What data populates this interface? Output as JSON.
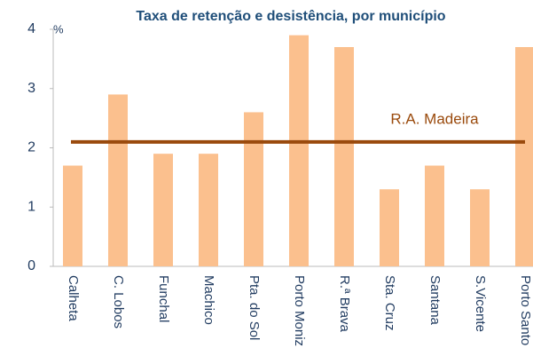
{
  "chart_data": {
    "type": "bar",
    "title": "Taxa de retenção e desistência, por município",
    "y_unit": "%",
    "categories": [
      "Calheta",
      "C. Lobos",
      "Funchal",
      "Machico",
      "Pta. do Sol",
      "Porto Moniz",
      "R.ª Brava",
      "Sta. Cruz",
      "Santana",
      "S.Vicente",
      "Porto Santo"
    ],
    "values": [
      1.7,
      2.9,
      1.9,
      1.9,
      2.6,
      3.9,
      3.7,
      1.3,
      1.7,
      1.3,
      3.7
    ],
    "color": "#fbc08e",
    "reference": {
      "name": "R.A. Madeira",
      "value": 2.1,
      "color": "#9a4a0c"
    },
    "ylim": [
      0,
      4
    ],
    "yticks": [
      0,
      1,
      2,
      3,
      4
    ],
    "grid": false
  }
}
